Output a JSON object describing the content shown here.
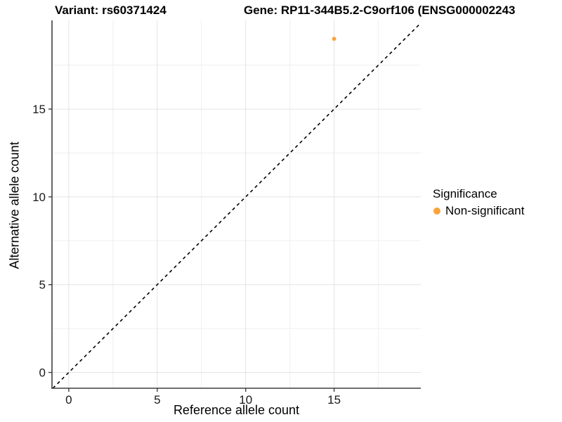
{
  "header": {
    "title_variant": "Variant: rs60371424",
    "title_gene": "Gene: RP11-344B5.2-C9orf106 (ENSG000002243"
  },
  "chart_data": {
    "type": "scatter",
    "xlabel": "Reference allele count",
    "ylabel": "Alternative allele count",
    "xlim": [
      -0.95,
      19.9
    ],
    "ylim": [
      -0.9,
      20.05
    ],
    "x_ticks": [
      0,
      5,
      10,
      15
    ],
    "y_ticks": [
      0,
      5,
      10,
      15
    ],
    "x_minor_ticks": [
      2.5,
      7.5,
      12.5,
      17.5
    ],
    "y_minor_ticks": [
      2.5,
      7.5,
      12.5,
      17.5
    ],
    "grid": true,
    "series": [
      {
        "name": "Non-significant",
        "color": "#FBA33C",
        "points": [
          {
            "x": 15,
            "y": 19
          }
        ]
      }
    ],
    "reference_line": {
      "slope": 1,
      "intercept": 0,
      "style": "dashed",
      "color": "#000000"
    },
    "legend": {
      "title": "Significance",
      "position": "right",
      "entries": [
        {
          "label": "Non-significant",
          "color": "#FBA33C"
        }
      ]
    }
  },
  "colors": {
    "background": "#FFFFFF",
    "axis_line": "#3F3F3F",
    "major_grid": "#E3E3E3",
    "minor_grid": "#EFEFEF",
    "tick_text": "#1A1A1A"
  }
}
